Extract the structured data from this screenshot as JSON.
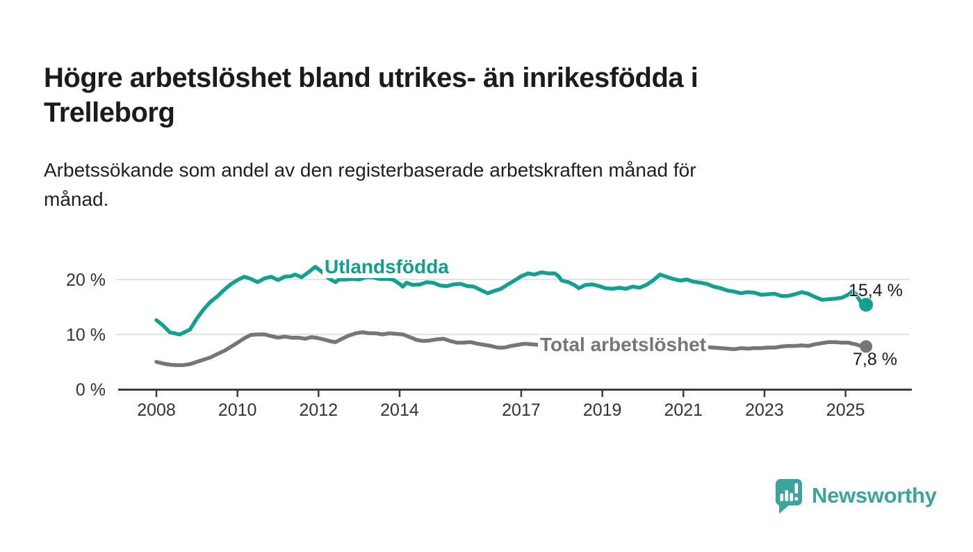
{
  "page": {
    "title_line1": "Högre arbetslöshet bland utrikes- än inrikesfödda i",
    "title_line2": "Trelleborg",
    "subtitle_line1": "Arbetssökande som andel av den registerbaserade arbetskraften månad för",
    "subtitle_line2": "månad."
  },
  "branding": {
    "logo_text": "Newsworthy",
    "logo_color": "#3da39c"
  },
  "colors": {
    "foreign_born": "#13a08f",
    "total": "#77747a",
    "grid": "#d9d9d9",
    "axis": "#3c3c3c",
    "axis_text": "#333333"
  },
  "chart_data": {
    "type": "line",
    "title": "Högre arbetslöshet bland utrikes- än inrikesfödda i Trelleborg",
    "subtitle": "Arbetssökande som andel av den registerbaserade arbetskraften månad för månad.",
    "grid": "horizontal",
    "legend_position": "inline-labels",
    "xlim": [
      2007.9,
      2026.2
    ],
    "ylim": [
      0,
      24
    ],
    "yticks": [
      {
        "value": 0,
        "label": "0 %"
      },
      {
        "value": 10,
        "label": "10 %"
      },
      {
        "value": 20,
        "label": "20 %"
      }
    ],
    "xticks": [
      {
        "value": 2008,
        "label": "2008"
      },
      {
        "value": 2010,
        "label": "2010"
      },
      {
        "value": 2012,
        "label": "2012"
      },
      {
        "value": 2014,
        "label": "2014"
      },
      {
        "value": 2017,
        "label": "2017"
      },
      {
        "value": 2019,
        "label": "2019"
      },
      {
        "value": 2021,
        "label": "2021"
      },
      {
        "value": 2023,
        "label": "2023"
      },
      {
        "value": 2025,
        "label": "2025"
      }
    ],
    "series": [
      {
        "name": "Utlandsfödda",
        "color": "#13a08f",
        "end_label": "15,4 %",
        "latest_value": 15.4,
        "points": [
          [
            2008.0,
            12.6
          ],
          [
            2008.17,
            11.6
          ],
          [
            2008.33,
            10.4
          ],
          [
            2008.5,
            10.1
          ],
          [
            2008.58,
            10.0
          ],
          [
            2008.67,
            10.3
          ],
          [
            2008.83,
            10.9
          ],
          [
            2009.0,
            12.9
          ],
          [
            2009.17,
            14.6
          ],
          [
            2009.33,
            15.9
          ],
          [
            2009.5,
            16.9
          ],
          [
            2009.67,
            18.1
          ],
          [
            2009.83,
            19.1
          ],
          [
            2010.0,
            19.9
          ],
          [
            2010.17,
            20.5
          ],
          [
            2010.33,
            20.1
          ],
          [
            2010.5,
            19.5
          ],
          [
            2010.67,
            20.2
          ],
          [
            2010.83,
            20.5
          ],
          [
            2011.0,
            19.9
          ],
          [
            2011.17,
            20.5
          ],
          [
            2011.33,
            20.6
          ],
          [
            2011.42,
            20.9
          ],
          [
            2011.58,
            20.4
          ],
          [
            2011.75,
            21.3
          ],
          [
            2011.92,
            22.3
          ],
          [
            2012.08,
            21.4
          ],
          [
            2012.25,
            20.2
          ],
          [
            2012.42,
            19.5
          ],
          [
            2012.5,
            20.0
          ],
          [
            2012.67,
            20.0
          ],
          [
            2012.83,
            20.1
          ],
          [
            2013.0,
            20.0
          ],
          [
            2013.17,
            20.4
          ],
          [
            2013.33,
            20.4
          ],
          [
            2013.5,
            20.1
          ],
          [
            2013.67,
            20.1
          ],
          [
            2013.83,
            20.0
          ],
          [
            2013.92,
            19.6
          ],
          [
            2014.0,
            19.2
          ],
          [
            2014.08,
            18.7
          ],
          [
            2014.17,
            19.4
          ],
          [
            2014.33,
            19.0
          ],
          [
            2014.5,
            19.1
          ],
          [
            2014.67,
            19.5
          ],
          [
            2014.83,
            19.4
          ],
          [
            2015.0,
            18.9
          ],
          [
            2015.17,
            18.8
          ],
          [
            2015.33,
            19.1
          ],
          [
            2015.5,
            19.2
          ],
          [
            2015.67,
            18.8
          ],
          [
            2015.83,
            18.7
          ],
          [
            2016.0,
            18.1
          ],
          [
            2016.17,
            17.5
          ],
          [
            2016.33,
            17.9
          ],
          [
            2016.5,
            18.3
          ],
          [
            2016.67,
            19.1
          ],
          [
            2016.83,
            19.8
          ],
          [
            2017.0,
            20.6
          ],
          [
            2017.17,
            21.1
          ],
          [
            2017.33,
            20.9
          ],
          [
            2017.5,
            21.3
          ],
          [
            2017.67,
            21.1
          ],
          [
            2017.83,
            21.1
          ],
          [
            2017.92,
            20.6
          ],
          [
            2018.0,
            19.8
          ],
          [
            2018.17,
            19.5
          ],
          [
            2018.33,
            18.9
          ],
          [
            2018.42,
            18.4
          ],
          [
            2018.58,
            19.0
          ],
          [
            2018.75,
            19.1
          ],
          [
            2018.92,
            18.8
          ],
          [
            2019.08,
            18.4
          ],
          [
            2019.25,
            18.3
          ],
          [
            2019.42,
            18.5
          ],
          [
            2019.58,
            18.3
          ],
          [
            2019.75,
            18.7
          ],
          [
            2019.92,
            18.5
          ],
          [
            2020.08,
            19.0
          ],
          [
            2020.25,
            19.8
          ],
          [
            2020.42,
            20.9
          ],
          [
            2020.58,
            20.5
          ],
          [
            2020.75,
            20.1
          ],
          [
            2020.92,
            19.8
          ],
          [
            2021.08,
            20.0
          ],
          [
            2021.25,
            19.6
          ],
          [
            2021.42,
            19.4
          ],
          [
            2021.58,
            19.2
          ],
          [
            2021.75,
            18.7
          ],
          [
            2021.92,
            18.4
          ],
          [
            2022.08,
            18.0
          ],
          [
            2022.25,
            17.8
          ],
          [
            2022.42,
            17.5
          ],
          [
            2022.58,
            17.7
          ],
          [
            2022.75,
            17.6
          ],
          [
            2022.92,
            17.2
          ],
          [
            2023.08,
            17.3
          ],
          [
            2023.25,
            17.4
          ],
          [
            2023.42,
            17.0
          ],
          [
            2023.58,
            17.0
          ],
          [
            2023.75,
            17.3
          ],
          [
            2023.92,
            17.7
          ],
          [
            2024.08,
            17.4
          ],
          [
            2024.25,
            16.8
          ],
          [
            2024.42,
            16.3
          ],
          [
            2024.58,
            16.4
          ],
          [
            2024.75,
            16.5
          ],
          [
            2024.92,
            16.7
          ],
          [
            2025.08,
            17.3
          ],
          [
            2025.17,
            17.9
          ],
          [
            2025.25,
            17.4
          ],
          [
            2025.33,
            16.4
          ],
          [
            2025.42,
            15.4
          ]
        ]
      },
      {
        "name": "Total arbetslöshet",
        "color": "#77747a",
        "end_label": "7,8 %",
        "latest_value": 7.8,
        "points": [
          [
            2008.0,
            5.0
          ],
          [
            2008.17,
            4.7
          ],
          [
            2008.33,
            4.5
          ],
          [
            2008.5,
            4.4
          ],
          [
            2008.67,
            4.4
          ],
          [
            2008.83,
            4.6
          ],
          [
            2009.0,
            5.0
          ],
          [
            2009.17,
            5.4
          ],
          [
            2009.33,
            5.8
          ],
          [
            2009.5,
            6.4
          ],
          [
            2009.67,
            7.0
          ],
          [
            2009.83,
            7.7
          ],
          [
            2010.0,
            8.5
          ],
          [
            2010.17,
            9.3
          ],
          [
            2010.33,
            9.9
          ],
          [
            2010.5,
            10.0
          ],
          [
            2010.67,
            10.0
          ],
          [
            2010.83,
            9.7
          ],
          [
            2011.0,
            9.4
          ],
          [
            2011.17,
            9.6
          ],
          [
            2011.33,
            9.4
          ],
          [
            2011.5,
            9.4
          ],
          [
            2011.67,
            9.2
          ],
          [
            2011.83,
            9.5
          ],
          [
            2012.0,
            9.3
          ],
          [
            2012.17,
            9.0
          ],
          [
            2012.33,
            8.7
          ],
          [
            2012.42,
            8.6
          ],
          [
            2012.58,
            9.2
          ],
          [
            2012.75,
            9.8
          ],
          [
            2012.92,
            10.2
          ],
          [
            2013.08,
            10.4
          ],
          [
            2013.25,
            10.2
          ],
          [
            2013.42,
            10.2
          ],
          [
            2013.58,
            10.0
          ],
          [
            2013.75,
            10.2
          ],
          [
            2013.92,
            10.1
          ],
          [
            2014.08,
            10.0
          ],
          [
            2014.25,
            9.5
          ],
          [
            2014.42,
            9.0
          ],
          [
            2014.58,
            8.8
          ],
          [
            2014.75,
            8.9
          ],
          [
            2014.92,
            9.1
          ],
          [
            2015.08,
            9.2
          ],
          [
            2015.25,
            8.8
          ],
          [
            2015.42,
            8.5
          ],
          [
            2015.58,
            8.5
          ],
          [
            2015.75,
            8.6
          ],
          [
            2015.92,
            8.3
          ],
          [
            2016.08,
            8.1
          ],
          [
            2016.25,
            7.9
          ],
          [
            2016.42,
            7.6
          ],
          [
            2016.58,
            7.6
          ],
          [
            2016.75,
            7.9
          ],
          [
            2016.92,
            8.1
          ],
          [
            2017.08,
            8.3
          ],
          [
            2017.25,
            8.2
          ],
          [
            2017.42,
            8.1
          ],
          [
            2017.58,
            7.9
          ],
          [
            2017.75,
            8.0
          ],
          [
            2017.92,
            7.8
          ],
          [
            2018.08,
            7.7
          ],
          [
            2018.25,
            7.6
          ],
          [
            2018.42,
            7.4
          ],
          [
            2018.58,
            7.5
          ],
          [
            2018.75,
            7.6
          ],
          [
            2018.92,
            7.4
          ],
          [
            2019.08,
            7.3
          ],
          [
            2019.25,
            7.2
          ],
          [
            2019.42,
            7.3
          ],
          [
            2019.58,
            7.4
          ],
          [
            2019.75,
            7.5
          ],
          [
            2019.92,
            7.7
          ],
          [
            2020.08,
            7.9
          ],
          [
            2020.25,
            8.3
          ],
          [
            2020.42,
            8.5
          ],
          [
            2020.58,
            8.4
          ],
          [
            2020.75,
            8.2
          ],
          [
            2020.92,
            8.1
          ],
          [
            2021.08,
            8.2
          ],
          [
            2021.25,
            8.0
          ],
          [
            2021.42,
            7.8
          ],
          [
            2021.58,
            7.7
          ],
          [
            2021.75,
            7.6
          ],
          [
            2021.92,
            7.5
          ],
          [
            2022.08,
            7.4
          ],
          [
            2022.25,
            7.3
          ],
          [
            2022.42,
            7.5
          ],
          [
            2022.58,
            7.4
          ],
          [
            2022.75,
            7.5
          ],
          [
            2022.92,
            7.5
          ],
          [
            2023.08,
            7.6
          ],
          [
            2023.25,
            7.6
          ],
          [
            2023.42,
            7.8
          ],
          [
            2023.58,
            7.9
          ],
          [
            2023.75,
            7.9
          ],
          [
            2023.92,
            8.0
          ],
          [
            2024.08,
            7.9
          ],
          [
            2024.25,
            8.2
          ],
          [
            2024.42,
            8.4
          ],
          [
            2024.58,
            8.6
          ],
          [
            2024.75,
            8.6
          ],
          [
            2024.92,
            8.5
          ],
          [
            2025.08,
            8.5
          ],
          [
            2025.17,
            8.3
          ],
          [
            2025.25,
            8.2
          ],
          [
            2025.33,
            8.0
          ],
          [
            2025.42,
            7.8
          ]
        ]
      }
    ]
  }
}
